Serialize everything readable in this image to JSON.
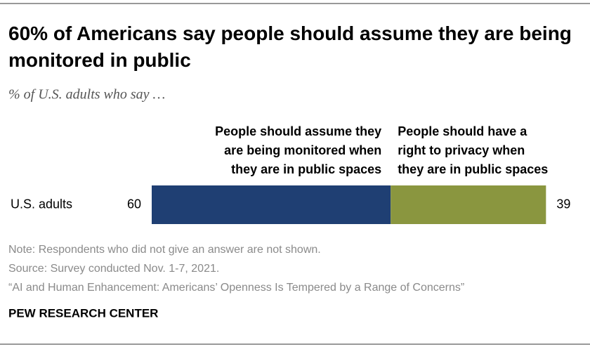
{
  "chart_data": {
    "type": "bar",
    "orientation": "horizontal",
    "stacked": true,
    "title": "60% of Americans say people should assume they are being monitored in public",
    "subtitle": "% of U.S. adults who say …",
    "categories": [
      "U.S. adults"
    ],
    "series": [
      {
        "name": "People should assume they\nare being monitored when\nthey are in public spaces",
        "color": "#1f3f73",
        "values": [
          60
        ]
      },
      {
        "name": "People should have a\nright to privacy when\nthey are in public spaces",
        "color": "#8a963f",
        "values": [
          39
        ]
      }
    ],
    "xlim": [
      0,
      100
    ],
    "notes": [
      "Note: Respondents who did not give an answer are not shown.",
      "Source: Survey conducted Nov. 1-7, 2021.",
      "“AI and Human Enhancement: Americans’ Openness Is Tempered by a Range of Concerns”"
    ],
    "source": "PEW RESEARCH CENTER"
  }
}
